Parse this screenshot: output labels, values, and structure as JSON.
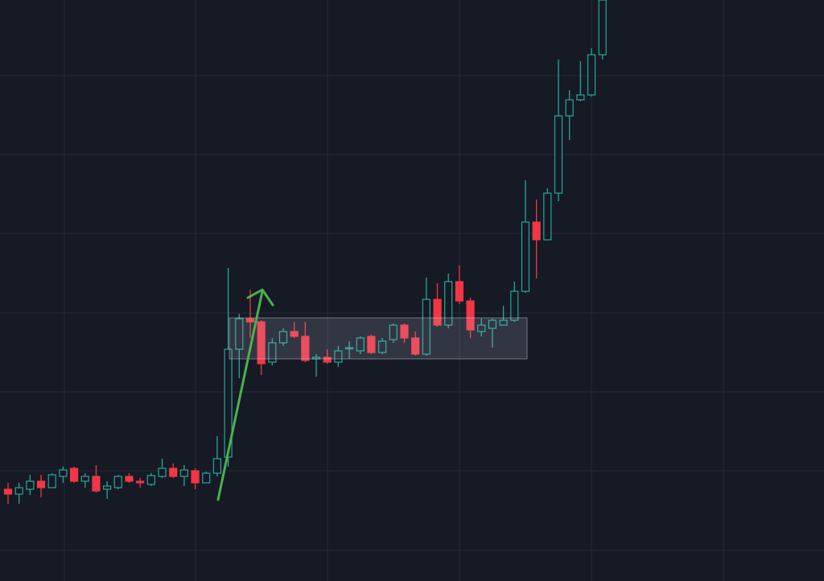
{
  "chart_data": {
    "type": "candlestick",
    "open": [
      114,
      108,
      114,
      124,
      116,
      130,
      140,
      124,
      130,
      114,
      116,
      130,
      124,
      120,
      130,
      140,
      130,
      137,
      122,
      134,
      154,
      288,
      326,
      322,
      272,
      296,
      310,
      304,
      276,
      278,
      272,
      290,
      286,
      304,
      284,
      300,
      318,
      302,
      282,
      350,
      318,
      372,
      348,
      310,
      314,
      318,
      324,
      360,
      446,
      424,
      482,
      578,
      598,
      604,
      654
    ],
    "high": [
      122,
      122,
      132,
      132,
      134,
      142,
      142,
      134,
      144,
      124,
      132,
      134,
      128,
      134,
      152,
      146,
      144,
      140,
      136,
      180,
      389,
      332,
      362,
      324,
      302,
      314,
      322,
      322,
      282,
      288,
      292,
      298,
      304,
      306,
      302,
      320,
      320,
      310,
      377,
      370,
      382,
      392,
      352,
      326,
      326,
      342,
      372,
      498,
      474,
      488,
      648,
      610,
      646,
      662,
      722
    ],
    "low": [
      96,
      96,
      107,
      104,
      116,
      122,
      122,
      116,
      110,
      102,
      114,
      122,
      116,
      118,
      128,
      128,
      118,
      114,
      122,
      130,
      142,
      252,
      302,
      256,
      268,
      292,
      302,
      272,
      254,
      270,
      266,
      276,
      282,
      282,
      282,
      296,
      296,
      280,
      280,
      316,
      314,
      344,
      302,
      304,
      290,
      320,
      322,
      358,
      376,
      424,
      472,
      548,
      596,
      602,
      648
    ],
    "close": [
      108,
      116,
      124,
      116,
      132,
      138,
      124,
      130,
      112,
      118,
      130,
      124,
      122,
      131,
      140,
      130,
      138,
      122,
      134,
      152,
      288,
      326,
      322,
      270,
      296,
      310,
      304,
      274,
      278,
      272,
      286,
      290,
      302,
      284,
      298,
      318,
      302,
      282,
      350,
      318,
      372,
      348,
      312,
      318,
      324,
      324,
      360,
      446,
      424,
      482,
      578,
      598,
      604,
      654,
      722
    ],
    "ylim": [
      0,
      722
    ],
    "up_color": "#26a69a",
    "down_color": "#f23645"
  }
}
